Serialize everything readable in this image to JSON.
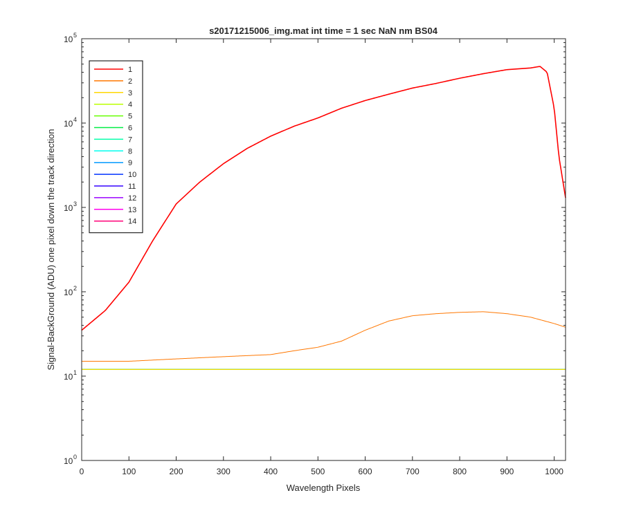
{
  "chart_data": {
    "type": "line",
    "title": "s20171215006_img.mat int time = 1 sec  NaN nm BS04",
    "xlabel": "Wavelength Pixels",
    "ylabel": "Signal-BackGround (ADU) one pixel down the track direction",
    "xlim": [
      0,
      1024
    ],
    "ylim": [
      1,
      100000
    ],
    "yscale": "log",
    "grid": false,
    "legend_position": "top-left",
    "x_ticks": [
      "0",
      "100",
      "200",
      "300",
      "400",
      "500",
      "600",
      "700",
      "800",
      "900",
      "1000"
    ],
    "y_ticks": [
      {
        "base": "10",
        "exp": "0"
      },
      {
        "base": "10",
        "exp": "1"
      },
      {
        "base": "10",
        "exp": "2"
      },
      {
        "base": "10",
        "exp": "3"
      },
      {
        "base": "10",
        "exp": "4"
      },
      {
        "base": "10",
        "exp": "5"
      }
    ],
    "series": [
      {
        "name": "1",
        "color": "#ff0000",
        "x": [
          0,
          50,
          100,
          150,
          200,
          250,
          300,
          350,
          400,
          450,
          500,
          550,
          600,
          650,
          700,
          750,
          800,
          850,
          900,
          950,
          970,
          985,
          1000,
          1010,
          1024
        ],
        "y": [
          35,
          60,
          130,
          400,
          1100,
          2000,
          3300,
          5000,
          7000,
          9200,
          11500,
          15000,
          18500,
          22000,
          26000,
          29500,
          34000,
          38500,
          43000,
          45000,
          47000,
          40000,
          15000,
          4000,
          1300
        ]
      },
      {
        "name": "2",
        "color": "#ff7700",
        "x": [
          0,
          100,
          200,
          300,
          400,
          450,
          500,
          550,
          600,
          650,
          700,
          750,
          800,
          850,
          900,
          950,
          1000,
          1024
        ],
        "y": [
          15,
          15,
          16,
          17,
          18,
          20,
          22,
          26,
          35,
          45,
          52,
          55,
          57,
          58,
          55,
          50,
          42,
          38
        ]
      },
      {
        "name": "3",
        "color": "#ffd700",
        "x": [
          0,
          1024
        ],
        "y": [
          12,
          12
        ]
      },
      {
        "name": "4",
        "color": "#bbff00",
        "x": [
          0,
          1024
        ],
        "y": [
          12,
          12
        ]
      },
      {
        "name": "5",
        "color": "#66ff00",
        "x": [
          0,
          1024
        ],
        "y": [
          12,
          12
        ]
      },
      {
        "name": "6",
        "color": "#00ee44",
        "x": [
          0,
          1024
        ],
        "y": [
          12,
          12
        ]
      },
      {
        "name": "7",
        "color": "#00ffaa",
        "x": [
          0,
          1024
        ],
        "y": [
          12,
          12
        ]
      },
      {
        "name": "8",
        "color": "#00ffee",
        "x": [
          0,
          1024
        ],
        "y": [
          12,
          12
        ]
      },
      {
        "name": "9",
        "color": "#0099ff",
        "x": [
          0,
          1024
        ],
        "y": [
          12,
          12
        ]
      },
      {
        "name": "10",
        "color": "#0033ff",
        "x": [
          0,
          1024
        ],
        "y": [
          12,
          12
        ]
      },
      {
        "name": "11",
        "color": "#3300ff",
        "x": [
          0,
          1024
        ],
        "y": [
          12,
          12
        ]
      },
      {
        "name": "12",
        "color": "#9900ff",
        "x": [
          0,
          1024
        ],
        "y": [
          12,
          12
        ]
      },
      {
        "name": "13",
        "color": "#ff00ee",
        "x": [
          0,
          1024
        ],
        "y": [
          12,
          12
        ]
      },
      {
        "name": "14",
        "color": "#ff0077",
        "x": [
          0,
          1024
        ],
        "y": [
          12,
          12
        ]
      }
    ]
  }
}
